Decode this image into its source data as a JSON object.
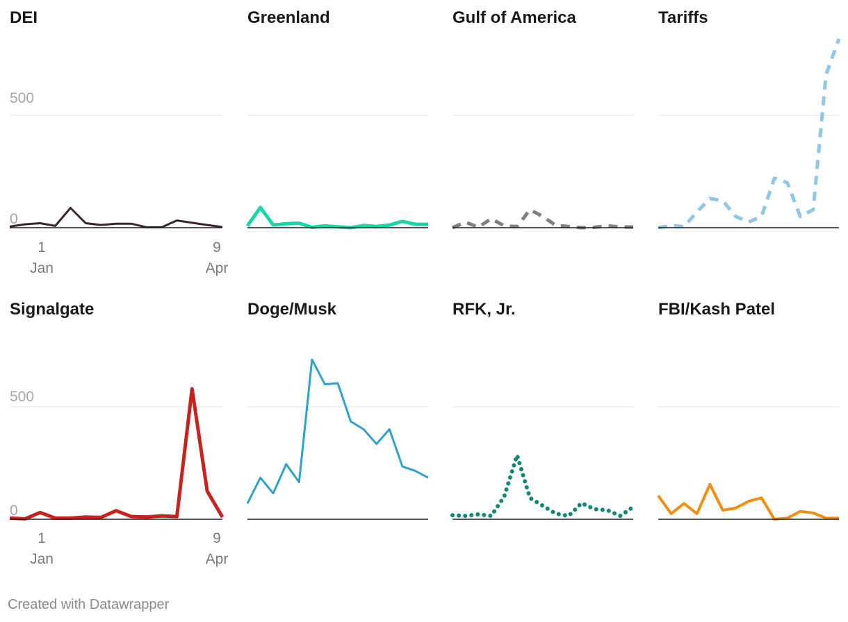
{
  "footer": {
    "credit": "Created with Datawrapper"
  },
  "chart_data": {
    "type": "line",
    "layout": "small-multiples",
    "y_ticks": [
      0,
      500
    ],
    "ylim": [
      0,
      900
    ],
    "x_ticks": [
      {
        "day": "1",
        "month": "Jan"
      },
      {
        "day": "9",
        "month": "Apr"
      }
    ],
    "x_start": "Jan 1",
    "x_end": "Apr 9",
    "panels": [
      {
        "title": "DEI",
        "color": "#3a2624",
        "dash": "solid",
        "width": 3,
        "values": [
          5,
          15,
          20,
          8,
          88,
          20,
          12,
          18,
          18,
          2,
          2,
          32,
          22,
          12,
          3
        ]
      },
      {
        "title": "Greenland",
        "color": "#18d6a6",
        "dash": "solid",
        "width": 5,
        "values": [
          8,
          90,
          12,
          18,
          20,
          2,
          8,
          4,
          0,
          10,
          5,
          12,
          28,
          15,
          15
        ]
      },
      {
        "title": "Gulf of America",
        "color": "#808080",
        "dash": "dashed",
        "width": 5,
        "values": [
          0,
          25,
          2,
          40,
          8,
          5,
          80,
          50,
          10,
          5,
          0,
          2,
          8,
          3,
          3
        ]
      },
      {
        "title": "Tariffs",
        "color": "#8ec7e8",
        "dash": "dashed",
        "width": 5,
        "values": [
          0,
          10,
          5,
          70,
          130,
          120,
          50,
          25,
          50,
          220,
          200,
          50,
          80,
          680,
          840
        ]
      },
      {
        "title": "Signalgate",
        "color": "#c8221f",
        "dash": "solid",
        "width": 5,
        "values": [
          5,
          2,
          30,
          5,
          5,
          10,
          8,
          38,
          12,
          10,
          15,
          12,
          580,
          125,
          10
        ]
      },
      {
        "title": "Doge/Musk",
        "color": "#2ea1cc",
        "dash": "solid",
        "width": 3,
        "values": [
          70,
          185,
          115,
          245,
          165,
          710,
          600,
          605,
          435,
          400,
          335,
          400,
          235,
          215,
          185
        ]
      },
      {
        "title": "RFK, Jr.",
        "color": "#0f8a72",
        "dash": "dotted",
        "width": 6,
        "values": [
          18,
          15,
          22,
          15,
          100,
          285,
          95,
          60,
          25,
          15,
          72,
          45,
          40,
          15,
          55
        ]
      },
      {
        "title": "FBI/Kash Patel",
        "color": "#f28e10",
        "dash": "solid",
        "width": 4,
        "values": [
          105,
          25,
          70,
          25,
          155,
          40,
          50,
          80,
          95,
          0,
          5,
          35,
          28,
          5,
          5
        ]
      }
    ]
  }
}
